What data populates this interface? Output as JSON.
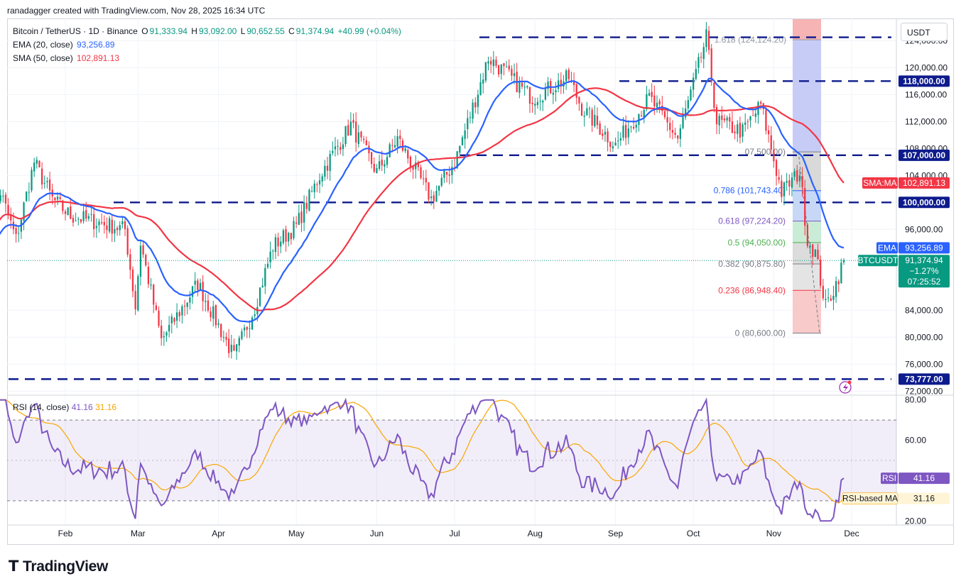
{
  "author_line": "ranadagger created with TradingView.com, Nov 28, 2025 16:34 UTC",
  "legend": {
    "symbol": "Bitcoin / TetherUS · 1D · Binance",
    "o_key": "O",
    "o": "91,333.94",
    "h_key": "H",
    "h": "93,092.00",
    "l_key": "L",
    "l": "90,652.55",
    "c_key": "C",
    "c": "91,374.94",
    "change": "+40.99 (+0.04%)",
    "ema_label": "EMA (20, close)",
    "ema_value": "93,256.89",
    "sma_label": "SMA (50, close)",
    "sma_value": "102,891.13"
  },
  "rsi_legend": {
    "label": "RSI (14, close)",
    "rsi_value": "41.16",
    "ma_value": "31.16"
  },
  "currency": "USDT",
  "logo": "TradingView",
  "colors": {
    "up": "#089981",
    "down": "#f23645",
    "ema": "#2962ff",
    "sma": "#f23645",
    "rsi": "#7e57c2",
    "rsi_ma": "#f7a600",
    "rsi_band": "#7e57c2",
    "level": "#0d1b8c"
  },
  "chart_data": [
    {
      "type": "candlestick",
      "title": "Bitcoin / TetherUS · 1D · Binance",
      "x_ticks": [
        "Feb",
        "Mar",
        "Apr",
        "May",
        "Jun",
        "Jul",
        "Aug",
        "Sep",
        "Oct",
        "Nov",
        "Dec"
      ],
      "y_ticks": [
        "124,000.00",
        "120,000.00",
        "116,000.00",
        "112,000.00",
        "108,000.00",
        "104,000.00",
        "100,000.00",
        "96,000.00",
        "84,000.00",
        "80,000.00",
        "76,000.00",
        "72,000.00"
      ],
      "y_tick_values": [
        124000,
        120000,
        116000,
        112000,
        108000,
        104000,
        100000,
        96000,
        84000,
        80000,
        76000,
        72000
      ],
      "ylim": [
        71500,
        127300
      ],
      "price_anchors": [
        [
          "2025-01-01",
          94000
        ],
        [
          "2025-01-07",
          101500
        ],
        [
          "2025-01-13",
          94500
        ],
        [
          "2025-01-20",
          106000
        ],
        [
          "2025-01-27",
          100500
        ],
        [
          "2025-02-03",
          98000
        ],
        [
          "2025-02-14",
          97000
        ],
        [
          "2025-02-24",
          96000
        ],
        [
          "2025-02-28",
          84500
        ],
        [
          "2025-03-02",
          94000
        ],
        [
          "2025-03-10",
          79500
        ],
        [
          "2025-03-24",
          88000
        ],
        [
          "2025-03-31",
          82500
        ],
        [
          "2025-04-07",
          77000
        ],
        [
          "2025-04-15",
          84500
        ],
        [
          "2025-04-22",
          93500
        ],
        [
          "2025-05-01",
          96500
        ],
        [
          "2025-05-10",
          104000
        ],
        [
          "2025-05-22",
          111500
        ],
        [
          "2025-06-01",
          104500
        ],
        [
          "2025-06-09",
          109500
        ],
        [
          "2025-06-22",
          100500
        ],
        [
          "2025-07-01",
          106000
        ],
        [
          "2025-07-10",
          116500
        ],
        [
          "2025-07-14",
          121500
        ],
        [
          "2025-07-31",
          115500
        ],
        [
          "2025-08-14",
          118500
        ],
        [
          "2025-08-19",
          114000
        ],
        [
          "2025-09-01",
          108500
        ],
        [
          "2025-09-14",
          115500
        ],
        [
          "2025-09-25",
          109500
        ],
        [
          "2025-10-01",
          117500
        ],
        [
          "2025-10-06",
          124500
        ],
        [
          "2025-10-10",
          112000
        ],
        [
          "2025-10-20",
          110500
        ],
        [
          "2025-10-27",
          114500
        ],
        [
          "2025-11-04",
          101500
        ],
        [
          "2025-11-11",
          104500
        ],
        [
          "2025-11-14",
          94500
        ],
        [
          "2025-11-17",
          92500
        ],
        [
          "2025-11-21",
          84500
        ],
        [
          "2025-11-25",
          88000
        ],
        [
          "2025-11-28",
          91374.94
        ]
      ],
      "last_close": 91374.94,
      "ema20_last": 93256.89,
      "sma50_last": 102891.13,
      "horizontal_levels": [
        {
          "value": 124500,
          "label": ""
        },
        {
          "value": 118000,
          "label": "118,000.00"
        },
        {
          "value": 107000,
          "label": "107,000.00"
        },
        {
          "value": 100000,
          "label": "100,000.00"
        },
        {
          "value": 73777,
          "label": "73,777.00"
        }
      ],
      "fibonacci": [
        {
          "ratio": "1.618",
          "value": 124124.2,
          "label": "1.618 (124,124.20)"
        },
        {
          "ratio": "1",
          "value": 107500,
          "label": "07,500.00)"
        },
        {
          "ratio": "0.786",
          "value": 101743.4,
          "label": "0.786 (101,743.40)"
        },
        {
          "ratio": "0.618",
          "value": 97224.2,
          "label": "0.618 (97,224.20)"
        },
        {
          "ratio": "0.5",
          "value": 94050,
          "label": "0.5 (94,050.00)"
        },
        {
          "ratio": "0.382",
          "value": 90875.8,
          "label": "0.382 (90,875.80)"
        },
        {
          "ratio": "0.236",
          "value": 86948.4,
          "label": "0.236 (86,948.40)"
        },
        {
          "ratio": "0",
          "value": 80600,
          "label": "0 (80,600.00)"
        }
      ],
      "price_tags": [
        {
          "name": "sma",
          "title": "SMA:MA",
          "value": "102,891.13",
          "price": 102891.13
        },
        {
          "name": "ema",
          "title": "EMA",
          "value": "93,256.89",
          "price": 93256.89
        },
        {
          "name": "last",
          "title": "BTCUSDT",
          "value": "91,374.94",
          "change": "−1.27%",
          "countdown": "07:25:52",
          "price": 91374.94
        }
      ]
    },
    {
      "type": "line",
      "title": "RSI (14, close)",
      "ylim": [
        18,
        82
      ],
      "y_ticks": [
        "80.00",
        "60.00",
        "20.00"
      ],
      "y_tick_values": [
        80,
        60,
        20
      ],
      "band": [
        30,
        70
      ],
      "rsi_last": 41.16,
      "rsi_ma_last": 31.16,
      "tags": [
        {
          "title": "RSI",
          "value": "41.16"
        },
        {
          "title": "RSI-based MA",
          "value": "31.16"
        }
      ]
    }
  ]
}
